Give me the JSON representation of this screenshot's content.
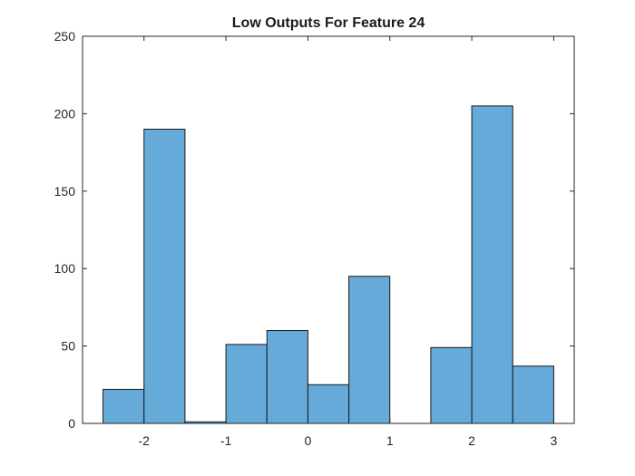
{
  "chart_data": {
    "type": "bar",
    "title": "Low Outputs For Feature 24",
    "xlabel": "",
    "ylabel": "",
    "bin_width": 0.5,
    "bin_edges": [
      -2.5,
      -2.0,
      -1.5,
      -1.0,
      -0.5,
      0.0,
      0.5,
      1.0,
      1.5,
      2.0,
      2.5,
      3.0
    ],
    "values": [
      22,
      190,
      1,
      51,
      60,
      25,
      95,
      0,
      49,
      205,
      37
    ],
    "xlim": [
      -2.75,
      3.25
    ],
    "ylim": [
      0,
      250
    ],
    "xticks": [
      -2,
      -1,
      0,
      1,
      2,
      3
    ],
    "xtick_labels": [
      "-2",
      "-1",
      "0",
      "1",
      "2",
      "3"
    ],
    "yticks": [
      0,
      50,
      100,
      150,
      200,
      250
    ],
    "ytick_labels": [
      "0",
      "50",
      "100",
      "150",
      "200",
      "250"
    ],
    "bar_color": "#65aad9",
    "edge_color": "#1a1a1a",
    "grid": false,
    "box": true
  }
}
